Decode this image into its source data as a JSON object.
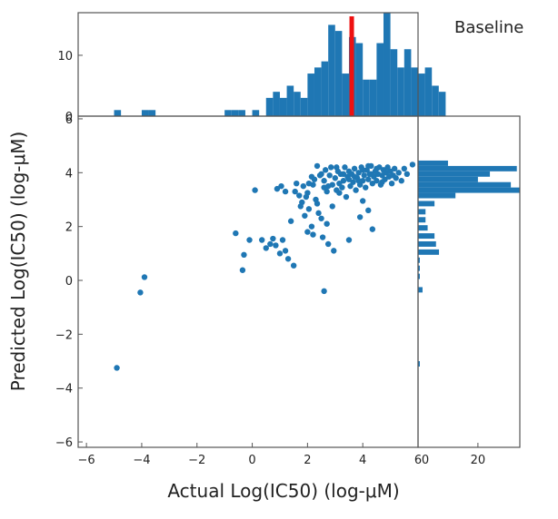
{
  "caption": "Baseline",
  "chart_data": {
    "type": "scatter",
    "xlabel": "Actual Log(IC50) (log-μM)",
    "ylabel": "Predicted Log(IC50) (log-μM)",
    "xlim": [
      -6.3,
      6
    ],
    "ylim": [
      -6.2,
      6.1
    ],
    "x_ticks": [
      -6,
      -4,
      -2,
      0,
      2,
      4,
      6
    ],
    "y_ticks": [
      -6,
      -4,
      -2,
      0,
      2,
      4,
      6
    ],
    "color": "#1f77b4",
    "marker_color": "#ee1111",
    "marker_x": 3.6,
    "points": [
      [
        -4.9,
        -3.25
      ],
      [
        -4.05,
        -0.45
      ],
      [
        -3.9,
        0.12
      ],
      [
        -0.35,
        0.38
      ],
      [
        -0.6,
        1.75
      ],
      [
        -0.1,
        1.5
      ],
      [
        0.1,
        3.35
      ],
      [
        0.65,
        1.35
      ],
      [
        0.75,
        1.55
      ],
      [
        0.85,
        1.3
      ],
      [
        1.0,
        1.0
      ],
      [
        1.1,
        1.5
      ],
      [
        0.9,
        3.4
      ],
      [
        1.2,
        1.1
      ],
      [
        1.3,
        0.8
      ],
      [
        1.5,
        0.55
      ],
      [
        1.05,
        3.5
      ],
      [
        1.4,
        2.2
      ],
      [
        1.55,
        3.3
      ],
      [
        1.7,
        3.15
      ],
      [
        1.8,
        2.9
      ],
      [
        1.85,
        3.5
      ],
      [
        1.9,
        2.4
      ],
      [
        2.0,
        3.25
      ],
      [
        2.0,
        1.8
      ],
      [
        2.05,
        2.65
      ],
      [
        2.15,
        2.0
      ],
      [
        2.2,
        3.55
      ],
      [
        2.25,
        3.75
      ],
      [
        2.3,
        3.0
      ],
      [
        2.35,
        4.25
      ],
      [
        2.4,
        2.5
      ],
      [
        2.45,
        3.9
      ],
      [
        2.5,
        2.3
      ],
      [
        2.55,
        1.6
      ],
      [
        2.6,
        3.45
      ],
      [
        2.65,
        4.1
      ],
      [
        2.7,
        2.1
      ],
      [
        2.7,
        3.3
      ],
      [
        2.75,
        1.35
      ],
      [
        2.8,
        3.9
      ],
      [
        2.85,
        4.2
      ],
      [
        2.9,
        3.55
      ],
      [
        2.9,
        2.75
      ],
      [
        2.95,
        1.1
      ],
      [
        3.0,
        3.8
      ],
      [
        3.05,
        3.35
      ],
      [
        3.1,
        4.05
      ],
      [
        3.15,
        3.6
      ],
      [
        3.2,
        3.95
      ],
      [
        3.25,
        3.45
      ],
      [
        3.3,
        3.7
      ],
      [
        3.35,
        4.2
      ],
      [
        3.4,
        3.1
      ],
      [
        3.45,
        3.85
      ],
      [
        3.5,
        4.05
      ],
      [
        3.55,
        3.5
      ],
      [
        3.6,
        3.95
      ],
      [
        3.65,
        3.65
      ],
      [
        3.7,
        4.15
      ],
      [
        3.75,
        3.35
      ],
      [
        3.8,
        3.8
      ],
      [
        3.85,
        4.0
      ],
      [
        3.9,
        3.55
      ],
      [
        3.95,
        4.2
      ],
      [
        4.0,
        3.7
      ],
      [
        4.05,
        3.9
      ],
      [
        4.1,
        3.45
      ],
      [
        4.15,
        4.1
      ],
      [
        4.2,
        3.75
      ],
      [
        4.25,
        3.95
      ],
      [
        4.3,
        4.25
      ],
      [
        4.35,
        3.6
      ],
      [
        4.4,
        3.85
      ],
      [
        4.45,
        4.05
      ],
      [
        4.5,
        3.7
      ],
      [
        4.55,
        3.95
      ],
      [
        4.6,
        4.2
      ],
      [
        4.65,
        3.55
      ],
      [
        4.7,
        3.9
      ],
      [
        4.75,
        4.1
      ],
      [
        4.8,
        3.75
      ],
      [
        4.85,
        4.0
      ],
      [
        4.9,
        4.2
      ],
      [
        4.95,
        3.85
      ],
      [
        5.0,
        4.05
      ],
      [
        5.05,
        3.6
      ],
      [
        5.1,
        3.9
      ],
      [
        5.15,
        4.15
      ],
      [
        5.2,
        3.8
      ],
      [
        5.3,
        4.0
      ],
      [
        5.4,
        3.7
      ],
      [
        5.5,
        4.15
      ],
      [
        5.6,
        3.95
      ],
      [
        5.8,
        4.3
      ],
      [
        2.05,
        3.6
      ],
      [
        2.15,
        3.85
      ],
      [
        2.5,
        3.95
      ],
      [
        2.6,
        3.7
      ],
      [
        2.75,
        3.5
      ],
      [
        3.05,
        4.2
      ],
      [
        3.15,
        3.25
      ],
      [
        3.3,
        3.95
      ],
      [
        3.5,
        3.75
      ],
      [
        3.7,
        3.85
      ],
      [
        3.85,
        3.7
      ],
      [
        4.0,
        4.1
      ],
      [
        4.2,
        4.25
      ],
      [
        4.3,
        3.95
      ],
      [
        4.5,
        4.15
      ],
      [
        4.7,
        3.65
      ],
      [
        3.9,
        2.35
      ],
      [
        4.0,
        2.95
      ],
      [
        4.2,
        2.6
      ],
      [
        4.35,
        1.9
      ],
      [
        3.5,
        1.5
      ],
      [
        2.6,
        -0.4
      ],
      [
        2.2,
        1.7
      ],
      [
        1.75,
        2.75
      ],
      [
        2.35,
        2.85
      ],
      [
        1.2,
        3.3
      ],
      [
        1.6,
        3.6
      ],
      [
        1.95,
        3.1
      ],
      [
        0.35,
        1.5
      ],
      [
        0.5,
        1.2
      ],
      [
        -0.3,
        0.95
      ]
    ],
    "top_hist": {
      "bin_start": -5.0,
      "bin_width": 0.25,
      "counts": [
        1,
        0,
        0,
        0,
        1,
        1,
        0,
        0,
        0,
        0,
        0,
        0,
        0,
        0,
        0,
        0,
        1,
        1,
        1,
        0,
        1,
        0,
        3,
        4,
        3,
        5,
        4,
        3,
        7,
        8,
        9,
        15,
        14,
        7,
        13,
        12,
        6,
        6,
        12,
        17,
        11,
        8,
        11,
        8,
        7,
        8,
        5,
        4
      ]
    },
    "right_hist": {
      "y_values": [
        -3.1,
        -0.35,
        0.15,
        0.45,
        0.75,
        1.05,
        1.35,
        1.65,
        1.95,
        2.25,
        2.55,
        2.85,
        3.15,
        3.35,
        3.55,
        3.75,
        3.95,
        4.15,
        4.35
      ],
      "counts": [
        0.6,
        1.5,
        0.6,
        0.6,
        0.6,
        7.0,
        6.0,
        5.5,
        3.2,
        2.5,
        2.5,
        5.5,
        12.5,
        34.0,
        31.0,
        20.0,
        24.0,
        33.0,
        10.0
      ],
      "xlim": [
        0,
        34
      ],
      "x_ticks": [
        0,
        20
      ]
    },
    "top_hist_ylim": [
      0,
      17
    ],
    "top_hist_y_ticks": [
      0,
      10
    ]
  }
}
